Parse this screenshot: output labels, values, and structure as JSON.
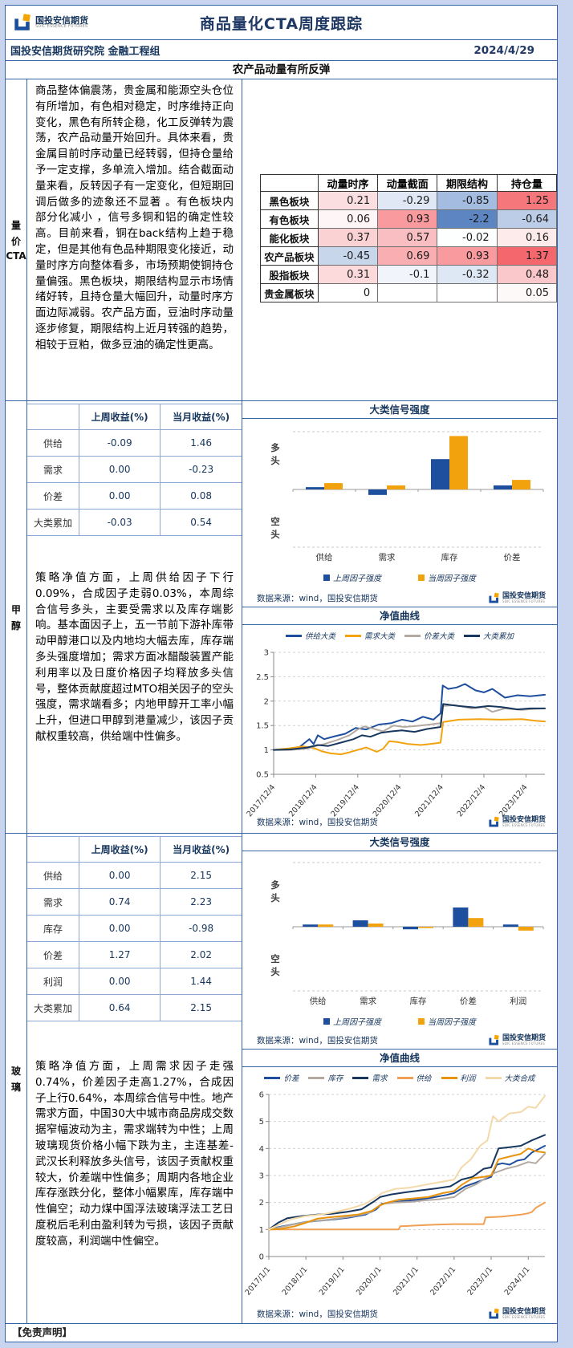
{
  "header": {
    "logo_cn": "国投安信期货",
    "logo_en": "SDIC ESSENCE FUTURES",
    "title": "商品量化CTA周度跟踪",
    "org": "国投安信期货研究院 金融工程组",
    "date": "2024/4/29",
    "subtitle": "农产品动量有所反弹"
  },
  "colors": {
    "accent_blue": "#3465a8",
    "navy": "#17365d",
    "bar_blue": "#1e4f9e",
    "bar_orange": "#f2a20d",
    "page_bg": "#c9d5ef",
    "heat_red_strong": "#f4676d",
    "heat_blue_strong": "#5c85c2"
  },
  "quant": {
    "label_lines": [
      "量",
      "价",
      "CTA"
    ],
    "paragraph": "商品整体偏震荡，贵金属和能源空头仓位有所增加，有色相对稳定，时序维持正向变化，黑色有所转企稳，化工反弹转为震荡，农产品动量开始回升。具体来看，贵金属目前时序动量已经转弱，但持仓量给予一定支撑，多单流入增加。结合截面动量来看，反转因子有一定变化，但短期回调后做多的迹象还不显著 。有色板块内部分化减小 ，信号多铜和铝的确定性较高。目前来看，铜在back结构上趋于稳定，但是其他有色品种期限变化接近，动量时序方向整体看多，市场预期使铜持仓量偏强。黑色板块，期限结构显示市场情绪好转，且持仓量大幅回升，动量时序方面边际减弱。农产品方面，豆油时序动量逐步修复，期限结构上近月转强的趋势，相较于豆粕，做多豆油的确定性更高。",
    "heat_table": {
      "headers": [
        "",
        "动量时序",
        "动量截面",
        "期限结构",
        "持仓量"
      ],
      "rows": [
        {
          "label": "黑色板块",
          "cells": [
            {
              "v": "0.21",
              "bg": "#fbdfe0"
            },
            {
              "v": "-0.29",
              "bg": "#dfe8f4"
            },
            {
              "v": "-0.85",
              "bg": "#a4bcdf"
            },
            {
              "v": "1.25",
              "bg": "#f5777c"
            }
          ]
        },
        {
          "label": "有色板块",
          "cells": [
            {
              "v": "0.06",
              "bg": "#fef6f6"
            },
            {
              "v": "0.93",
              "bg": "#f89a9e"
            },
            {
              "v": "-2.2",
              "bg": "#5c85c2"
            },
            {
              "v": "-0.64",
              "bg": "#bccde8"
            }
          ]
        },
        {
          "label": "能化板块",
          "cells": [
            {
              "v": "0.37",
              "bg": "#fbd2d4"
            },
            {
              "v": "0.57",
              "bg": "#f9bec2"
            },
            {
              "v": "-0.02",
              "bg": "#fdfefe"
            },
            {
              "v": "0.16",
              "bg": "#fdebeb"
            }
          ]
        },
        {
          "label": "农产品板块",
          "cells": [
            {
              "v": "-0.45",
              "bg": "#c8d6ec"
            },
            {
              "v": "0.69",
              "bg": "#f9afb2"
            },
            {
              "v": "0.93",
              "bg": "#f89a9e"
            },
            {
              "v": "1.37",
              "bg": "#f4676d"
            }
          ]
        },
        {
          "label": "股指板块",
          "cells": [
            {
              "v": "0.31",
              "bg": "#fcdadb"
            },
            {
              "v": "-0.1",
              "bg": "#f1f5fb"
            },
            {
              "v": "-0.32",
              "bg": "#dee7f4"
            },
            {
              "v": "0.48",
              "bg": "#fac8cb"
            }
          ]
        },
        {
          "label": "贵金属板块",
          "cells": [
            {
              "v": "0",
              "bg": "#ffffff"
            },
            {
              "v": "",
              "bg": "#ffffff"
            },
            {
              "v": "",
              "bg": "#ffffff"
            },
            {
              "v": "0.05",
              "bg": "#fef9f9"
            }
          ]
        }
      ]
    }
  },
  "methanol": {
    "label_lines": [
      "甲",
      "醇"
    ],
    "factor_table": {
      "headers": [
        "",
        "上周收益(%)",
        "当月收益(%)"
      ],
      "rows": [
        {
          "label": "供给",
          "week": "-0.09",
          "month": "1.46"
        },
        {
          "label": "需求",
          "week": "0.00",
          "month": "-0.23"
        },
        {
          "label": "价差",
          "week": "0.00",
          "month": "0.08"
        },
        {
          "label": "大类累加",
          "week": "-0.03",
          "month": "0.54"
        }
      ]
    },
    "paragraph": "策略净值方面，上周供给因子下行0.09%，合成因子走弱0.03%，本周综合信号多头，主要受需求以及库存端影响。基本面因子上，五一节前下游补库带动甲醇港口以及内地均大幅去库，库存端多头强度增加；需求方面冰醋酸装置产能利用率以及日度价格因子均释放多头信号，整体贡献度超过MTO相关因子的空头强度，需求端看多；内地甲醇开工率小幅上升，但进口甲醇到港量减少，该因子贡献权重较高，供给端中性偏多。"
  },
  "glass": {
    "label_lines": [
      "玻",
      "璃"
    ],
    "factor_table": {
      "headers": [
        "",
        "上周收益(%)",
        "当月收益(%)"
      ],
      "rows": [
        {
          "label": "供给",
          "week": "0.00",
          "month": "2.15"
        },
        {
          "label": "需求",
          "week": "0.74",
          "month": "2.23"
        },
        {
          "label": "库存",
          "week": "0.00",
          "month": "-0.98"
        },
        {
          "label": "价差",
          "week": "1.27",
          "month": "2.02"
        },
        {
          "label": "利润",
          "week": "0.00",
          "month": "1.44"
        },
        {
          "label": "大类累加",
          "week": "0.64",
          "month": "2.15"
        }
      ]
    },
    "paragraph": "策略净值方面，上周需求因子走强0.74%，价差因子走高1.27%，合成因子上行0.64%，本周综合信号中性。地产需求方面，中国30大中城市商品房成交数据窄幅波动为主，需求端转为中性；上周玻璃现货价格小幅下跌为主，主连基差-武汉长利释放多头信号，该因子贡献权重较大，价差端中性偏多；周期内各地企业库存涨跌分化，整体小幅累库，库存端中性偏空；动力煤中国浮法玻璃浮法工艺日度税后毛利由盈利转为亏损，该因子贡献度较高，利润端中性偏空。"
  },
  "footer": {
    "disclaimer": "【免责声明】"
  },
  "chart_data": [
    {
      "id": "methanol_bar",
      "type": "bar",
      "title": "大类信号强度",
      "categories": [
        "供给",
        "需求",
        "库存",
        "价差"
      ],
      "series": [
        {
          "name": "上周因子强度",
          "color": "#1e4f9e",
          "values": [
            0.08,
            -0.19,
            1.05,
            0.14
          ]
        },
        {
          "name": "当周因子强度",
          "color": "#f2a20d",
          "values": [
            0.22,
            0.14,
            1.85,
            0.33
          ]
        }
      ],
      "ylim": [
        -2,
        2
      ],
      "axis_labels": {
        "pos": "多头",
        "neg": "空头"
      },
      "source": "数据来源：wind，国投安信期货"
    },
    {
      "id": "methanol_line",
      "type": "line",
      "title": "净值曲线",
      "yticks": [
        0.5,
        1,
        1.5,
        2,
        2.5,
        3
      ],
      "xtick_labels": [
        "2017/12/4",
        "2018/12/4",
        "2019/12/4",
        "2020/12/4",
        "2021/12/4",
        "2022/12/4",
        "2023/12/4"
      ],
      "xmax": 6.45,
      "series": [
        {
          "name": "供给大类",
          "color": "#1e4f9e",
          "x": [
            0,
            0.3,
            0.6,
            0.85,
            0.95,
            1.05,
            1.2,
            1.45,
            1.7,
            1.95,
            2.2,
            2.5,
            2.8,
            3.05,
            3.3,
            3.55,
            3.8,
            3.97,
            4.02,
            4.15,
            4.35,
            4.55,
            4.8,
            5.0,
            5.2,
            5.5,
            5.8,
            6.1,
            6.45
          ],
          "y": [
            1.0,
            1.02,
            1.05,
            1.22,
            1.12,
            1.3,
            1.22,
            1.28,
            1.33,
            1.45,
            1.42,
            1.52,
            1.55,
            1.62,
            1.58,
            1.68,
            1.62,
            1.75,
            2.32,
            2.25,
            2.28,
            2.35,
            2.22,
            2.18,
            2.25,
            2.07,
            2.12,
            2.1,
            2.13
          ]
        },
        {
          "name": "需求大类",
          "color": "#f2a20d",
          "x": [
            0,
            0.35,
            0.7,
            0.95,
            1.15,
            1.35,
            1.6,
            1.8,
            2.0,
            2.2,
            2.45,
            2.6,
            2.75,
            2.95,
            3.2,
            3.5,
            3.8,
            3.97,
            4.03,
            4.4,
            4.9,
            5.4,
            5.9,
            6.2,
            6.45
          ],
          "y": [
            1.0,
            1.03,
            1.07,
            1.04,
            0.97,
            0.93,
            0.91,
            0.95,
            1.0,
            1.05,
            0.96,
            1.02,
            1.18,
            1.16,
            1.12,
            1.1,
            1.13,
            1.15,
            1.57,
            1.62,
            1.63,
            1.62,
            1.63,
            1.6,
            1.58
          ]
        },
        {
          "name": "价差大类",
          "color": "#b3a9a1",
          "x": [
            0,
            0.4,
            0.8,
            1.0,
            1.2,
            1.5,
            1.8,
            2.0,
            2.15,
            2.35,
            2.6,
            2.85,
            3.1,
            3.4,
            3.7,
            3.97,
            4.03,
            4.3,
            4.7,
            5.0,
            5.2,
            5.5,
            5.9,
            6.2,
            6.45
          ],
          "y": [
            1.0,
            1.0,
            1.03,
            1.08,
            1.12,
            1.2,
            1.3,
            1.42,
            1.48,
            1.44,
            1.38,
            1.5,
            1.47,
            1.49,
            1.52,
            1.55,
            1.9,
            1.92,
            1.85,
            1.88,
            1.78,
            1.85,
            1.82,
            1.84,
            1.85
          ]
        },
        {
          "name": "大类累加",
          "color": "#17375e",
          "x": [
            0,
            0.4,
            0.8,
            1.05,
            1.3,
            1.6,
            1.9,
            2.1,
            2.3,
            2.55,
            2.8,
            3.05,
            3.35,
            3.65,
            3.97,
            4.03,
            4.4,
            4.8,
            5.1,
            5.4,
            5.8,
            6.1,
            6.45
          ],
          "y": [
            1.0,
            1.01,
            1.05,
            1.1,
            1.08,
            1.15,
            1.22,
            1.3,
            1.27,
            1.35,
            1.38,
            1.4,
            1.37,
            1.43,
            1.47,
            1.94,
            1.9,
            1.87,
            1.9,
            1.88,
            1.83,
            1.85,
            1.85
          ]
        }
      ],
      "source": "数据来源：wind，国投安信期货"
    },
    {
      "id": "glass_bar",
      "type": "bar",
      "title": "大类信号强度",
      "categories": [
        "供给",
        "需求",
        "库存",
        "价差",
        "利润"
      ],
      "series": [
        {
          "name": "上周因子强度",
          "color": "#1e4f9e",
          "values": [
            0.07,
            0.2,
            -0.08,
            0.6,
            0.07
          ]
        },
        {
          "name": "当周因子强度",
          "color": "#f2a20d",
          "values": [
            0.07,
            0.1,
            -0.04,
            0.27,
            -0.12
          ]
        }
      ],
      "ylim": [
        -2,
        2
      ],
      "axis_labels": {
        "pos": "多头",
        "neg": "空头"
      },
      "source": "数据来源：wind，国投安信期货"
    },
    {
      "id": "glass_line",
      "type": "line",
      "title": "净值曲线",
      "yticks": [
        0,
        1,
        2,
        3,
        4,
        5,
        6
      ],
      "xtick_labels": [
        "2017/1/1",
        "2018/1/1",
        "2019/1/1",
        "2020/1/1",
        "2021/1/1",
        "2022/1/1",
        "2023/1/1",
        "2024/1/1"
      ],
      "xmax": 7.45,
      "series": [
        {
          "name": "价差",
          "color": "#1e4f9e",
          "x": [
            0,
            0.3,
            0.6,
            1.0,
            1.4,
            1.8,
            2.2,
            2.6,
            2.9,
            3.05,
            3.3,
            3.6,
            4.0,
            4.4,
            4.8,
            5.0,
            5.3,
            5.55,
            5.8,
            6.0,
            6.15,
            6.3,
            6.5,
            6.7,
            6.9,
            7.1,
            7.45
          ],
          "y": [
            1.0,
            1.1,
            1.18,
            1.28,
            1.33,
            1.38,
            1.45,
            1.55,
            1.75,
            1.95,
            2.0,
            2.05,
            2.1,
            2.18,
            2.28,
            2.35,
            2.6,
            2.72,
            2.85,
            2.95,
            3.4,
            3.45,
            3.4,
            3.55,
            3.6,
            3.85,
            4.1
          ]
        },
        {
          "name": "库存",
          "color": "#b3a9a1",
          "x": [
            0,
            0.3,
            0.7,
            1.1,
            1.5,
            1.9,
            2.3,
            2.7,
            2.95,
            3.1,
            3.4,
            3.8,
            4.2,
            4.6,
            5.0,
            5.3,
            5.6,
            5.9,
            6.1,
            6.4,
            6.7,
            7.0,
            7.2,
            7.45
          ],
          "y": [
            1.0,
            1.08,
            1.2,
            1.3,
            1.35,
            1.42,
            1.5,
            1.62,
            1.85,
            1.95,
            2.0,
            2.02,
            2.08,
            2.12,
            2.2,
            2.5,
            2.68,
            2.95,
            3.1,
            3.25,
            3.35,
            3.5,
            3.45,
            3.8
          ]
        },
        {
          "name": "需求",
          "color": "#17375e",
          "x": [
            0,
            0.25,
            0.5,
            0.9,
            1.3,
            1.7,
            2.1,
            2.5,
            2.85,
            3.0,
            3.3,
            3.7,
            4.1,
            4.5,
            4.9,
            5.2,
            5.5,
            5.8,
            6.0,
            6.2,
            6.5,
            6.8,
            7.1,
            7.45
          ],
          "y": [
            1.0,
            1.25,
            1.42,
            1.5,
            1.55,
            1.58,
            1.65,
            1.75,
            2.05,
            2.2,
            2.3,
            2.38,
            2.45,
            2.52,
            2.6,
            2.85,
            2.95,
            3.25,
            3.3,
            4.0,
            4.05,
            4.1,
            4.3,
            4.5
          ]
        },
        {
          "name": "供给",
          "color": "#f0a055",
          "x": [
            0,
            1.0,
            2.0,
            3.0,
            3.5,
            3.55,
            4.0,
            4.5,
            5.0,
            5.5,
            5.8,
            5.85,
            6.3,
            6.8,
            7.0,
            7.1,
            7.2,
            7.45
          ],
          "y": [
            1.0,
            1.0,
            1.0,
            1.0,
            1.0,
            1.12,
            1.15,
            1.18,
            1.2,
            1.2,
            1.2,
            1.45,
            1.48,
            1.55,
            1.6,
            1.65,
            1.8,
            2.0
          ]
        },
        {
          "name": "利润",
          "color": "#e8930c",
          "x": [
            0,
            0.3,
            0.7,
            1.0,
            1.3,
            1.6,
            2.0,
            2.4,
            2.8,
            3.0,
            3.2,
            3.5,
            3.9,
            4.3,
            4.7,
            5.0,
            5.2,
            5.5,
            5.8,
            6.0,
            6.2,
            6.5,
            6.8,
            7.0,
            7.2,
            7.45
          ],
          "y": [
            1.0,
            1.02,
            1.12,
            1.25,
            1.4,
            1.45,
            1.5,
            1.55,
            1.7,
            1.9,
            2.0,
            2.1,
            2.15,
            2.2,
            2.35,
            2.42,
            2.65,
            2.9,
            2.95,
            3.0,
            3.6,
            3.7,
            3.8,
            4.0,
            3.9,
            3.85
          ]
        },
        {
          "name": "大类合成",
          "color": "#f3d9a9",
          "x": [
            0,
            0.3,
            0.6,
            1.0,
            1.4,
            1.8,
            2.2,
            2.6,
            2.9,
            3.05,
            3.4,
            3.8,
            4.2,
            4.6,
            5.0,
            5.2,
            5.45,
            5.7,
            5.9,
            6.05,
            6.2,
            6.5,
            6.8,
            7.0,
            7.2,
            7.45
          ],
          "y": [
            1.0,
            1.2,
            1.38,
            1.5,
            1.55,
            1.65,
            1.78,
            1.95,
            2.2,
            2.35,
            2.5,
            2.55,
            2.65,
            2.75,
            2.85,
            3.3,
            3.6,
            4.1,
            4.3,
            5.2,
            5.0,
            5.3,
            5.35,
            5.55,
            5.5,
            5.95
          ]
        }
      ],
      "source": "数据来源：wind，国投安信期货"
    }
  ]
}
